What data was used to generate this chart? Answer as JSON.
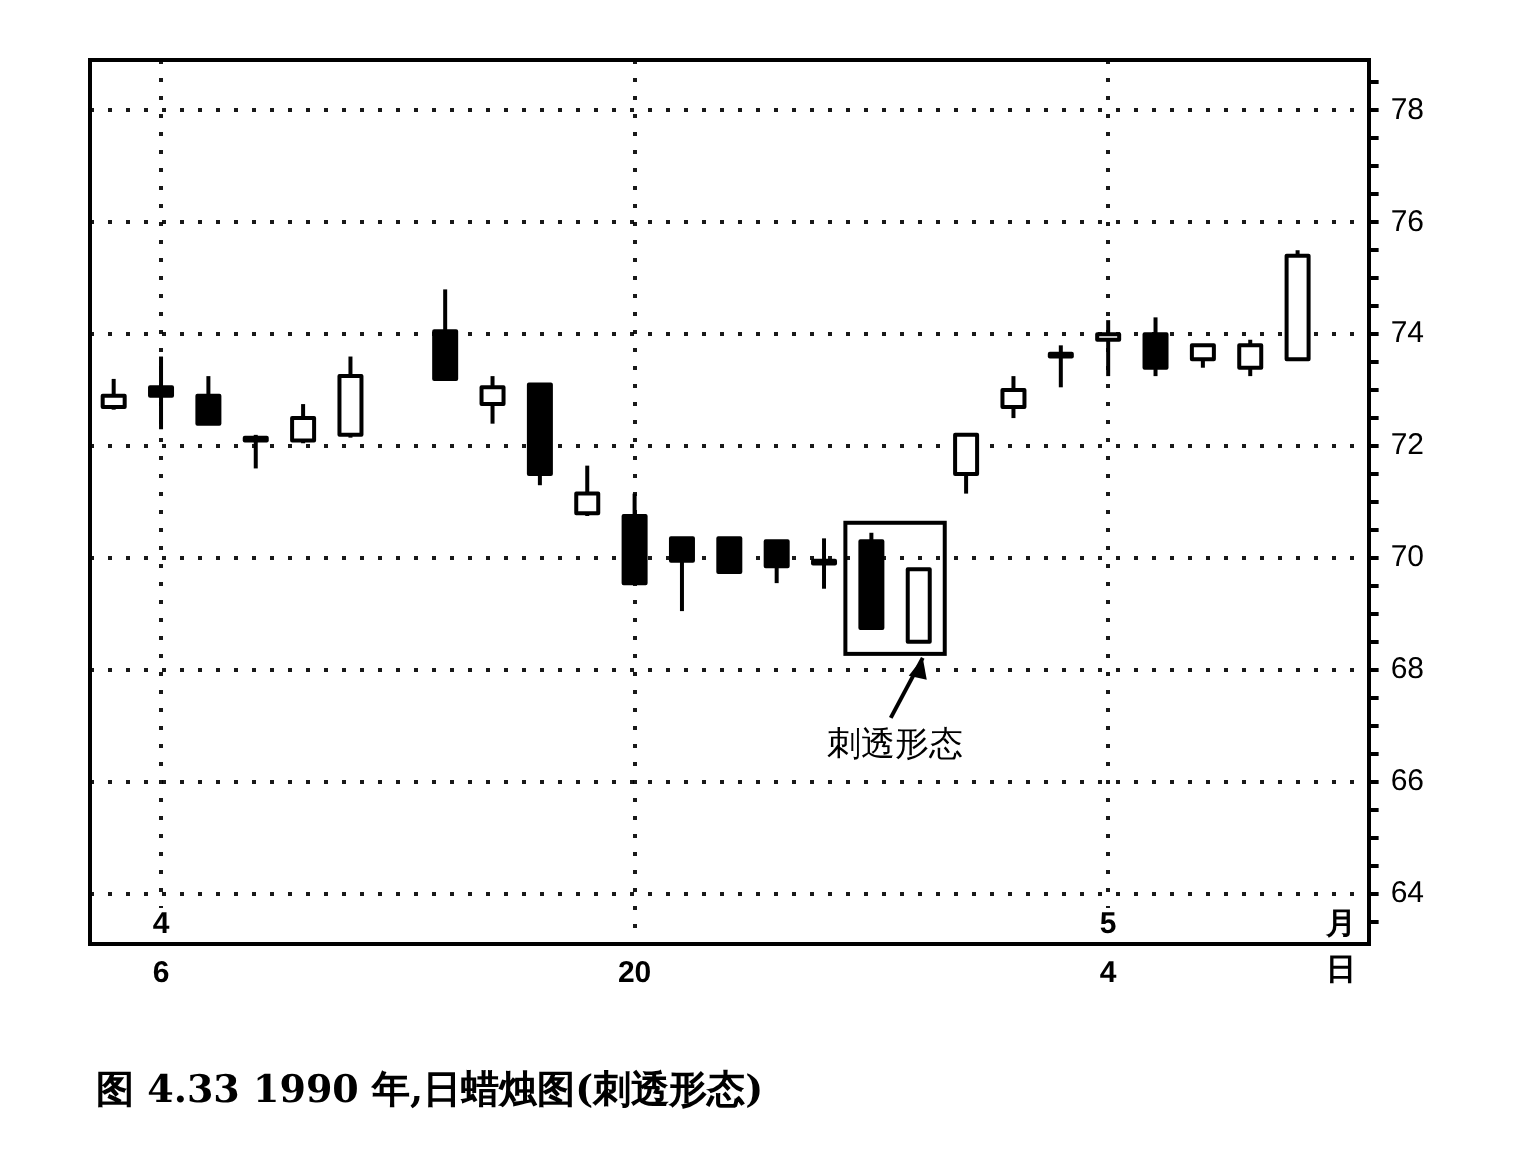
{
  "chart_data": {
    "type": "candlestick",
    "title": "图 4.33 1990 年,日蜡烛图(刺透形态)",
    "xlabel": "日",
    "categories": [
      null,
      "6",
      null,
      null,
      null,
      null,
      null,
      null,
      null,
      null,
      null,
      "20",
      null,
      null,
      null,
      null,
      null,
      null,
      null,
      null,
      null,
      "4",
      null,
      null,
      null,
      null,
      null
    ],
    "ohlc": [
      [
        72.7,
        73.2,
        72.65,
        72.9
      ],
      [
        73.05,
        73.6,
        72.3,
        72.9
      ],
      [
        72.9,
        73.25,
        72.4,
        72.4
      ],
      [
        72.1,
        72.2,
        71.6,
        72.15
      ],
      [
        72.1,
        72.75,
        72.05,
        72.5
      ],
      [
        72.2,
        73.6,
        72.15,
        73.25
      ],
      null,
      [
        74.05,
        74.8,
        73.2,
        73.2
      ],
      [
        72.75,
        73.25,
        72.4,
        73.05
      ],
      [
        73.1,
        73.1,
        71.3,
        71.5
      ],
      [
        70.8,
        71.65,
        70.75,
        71.15
      ],
      [
        70.75,
        71.15,
        69.55,
        69.55
      ],
      [
        70.35,
        70.35,
        69.05,
        69.95
      ],
      [
        70.35,
        70.35,
        69.75,
        69.75
      ],
      [
        70.3,
        70.3,
        69.55,
        69.85
      ],
      [
        69.9,
        70.35,
        69.45,
        69.95
      ],
      [
        70.3,
        70.45,
        68.75,
        68.75
      ],
      [
        68.5,
        69.8,
        68.5,
        69.8
      ],
      [
        71.5,
        72.2,
        71.15,
        72.2
      ],
      [
        72.7,
        73.25,
        72.5,
        73.0
      ],
      [
        73.6,
        73.8,
        73.05,
        73.65
      ],
      [
        73.9,
        74.25,
        73.25,
        74.0
      ],
      [
        74.0,
        74.3,
        73.25,
        73.4
      ],
      [
        73.55,
        73.8,
        73.4,
        73.8
      ],
      [
        73.4,
        73.9,
        73.25,
        73.8
      ],
      [
        73.55,
        75.5,
        73.55,
        75.4
      ],
      null
    ],
    "color": "#000000",
    "ylim": [
      63.1,
      78.9
    ],
    "yticks": [
      {
        "value": 63.5,
        "label": null
      },
      64,
      {
        "value": 64.5,
        "label": null
      },
      {
        "value": 65,
        "label": null
      },
      {
        "value": 65.5,
        "label": null
      },
      66,
      {
        "value": 66.5,
        "label": null
      },
      {
        "value": 67,
        "label": null
      },
      {
        "value": 67.5,
        "label": null
      },
      68,
      {
        "value": 68.5,
        "label": null
      },
      {
        "value": 69,
        "label": null
      },
      {
        "value": 69.5,
        "label": null
      },
      70,
      {
        "value": 70.5,
        "label": null
      },
      {
        "value": 71,
        "label": null
      },
      {
        "value": 71.5,
        "label": null
      },
      72,
      {
        "value": 72.5,
        "label": null
      },
      {
        "value": 73,
        "label": null
      },
      {
        "value": 73.5,
        "label": null
      },
      74,
      {
        "value": 74.5,
        "label": null
      },
      {
        "value": 75,
        "label": null
      },
      {
        "value": 75.5,
        "label": null
      },
      76,
      {
        "value": 76.5,
        "label": null
      },
      {
        "value": 77,
        "label": null
      },
      {
        "value": 77.5,
        "label": null
      },
      78,
      {
        "value": 78.5,
        "label": null
      }
    ],
    "grid": true,
    "annotations": [
      "4",
      "5",
      "月",
      "刺透形态"
    ]
  }
}
